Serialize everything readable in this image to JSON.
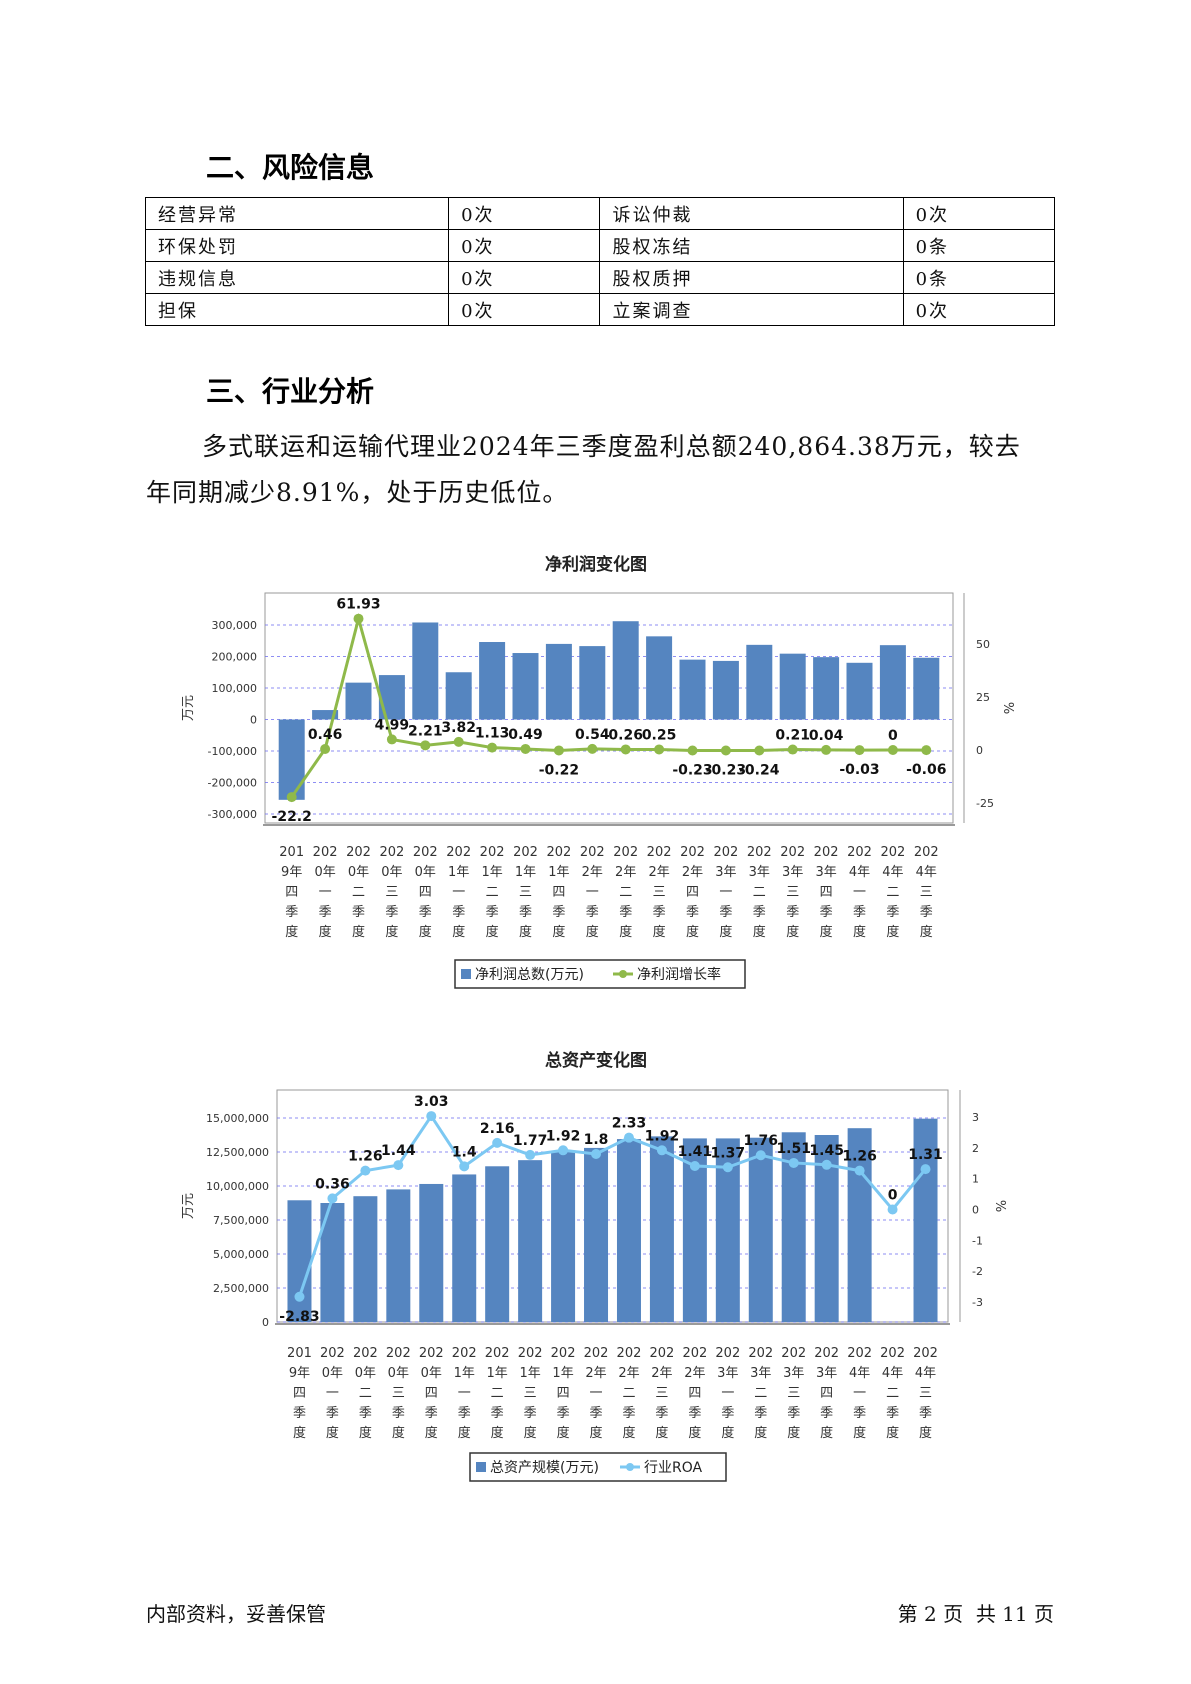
{
  "section2": {
    "title": "二、风险信息"
  },
  "risk_table": [
    [
      "经营异常",
      "0次",
      "诉讼仲裁",
      "0次"
    ],
    [
      "环保处罚",
      "0次",
      "股权冻结",
      "0条"
    ],
    [
      "违规信息",
      "0次",
      "股权质押",
      "0条"
    ],
    [
      "担保",
      "0次",
      "立案调查",
      "0次"
    ]
  ],
  "section3": {
    "title": "三、行业分析",
    "paragraph_line1": "多式联运和运输代理业2024年三季度盈利总额240,864.38万元，较去",
    "paragraph_line2": "年同期减少8.91%，处于历史低位。"
  },
  "chart_data": [
    {
      "type": "bar",
      "title": "净利润变化图",
      "ylabel": "万元",
      "y2label": "%",
      "ylim": [
        -300000,
        300000
      ],
      "y2lim": [
        -25,
        50
      ],
      "grid": true,
      "legend_placement": "bottom",
      "categories": [
        [
          "201",
          "9年",
          "四",
          "季",
          "度"
        ],
        [
          "202",
          "0年",
          "一",
          "季",
          "度"
        ],
        [
          "202",
          "0年",
          "二",
          "季",
          "度"
        ],
        [
          "202",
          "0年",
          "三",
          "季",
          "度"
        ],
        [
          "202",
          "0年",
          "四",
          "季",
          "度"
        ],
        [
          "202",
          "1年",
          "一",
          "季",
          "度"
        ],
        [
          "202",
          "1年",
          "二",
          "季",
          "度"
        ],
        [
          "202",
          "1年",
          "三",
          "季",
          "度"
        ],
        [
          "202",
          "1年",
          "四",
          "季",
          "度"
        ],
        [
          "202",
          "2年",
          "一",
          "季",
          "度"
        ],
        [
          "202",
          "2年",
          "二",
          "季",
          "度"
        ],
        [
          "202",
          "2年",
          "三",
          "季",
          "度"
        ],
        [
          "202",
          "2年",
          "四",
          "季",
          "度"
        ],
        [
          "202",
          "3年",
          "一",
          "季",
          "度"
        ],
        [
          "202",
          "3年",
          "二",
          "季",
          "度"
        ],
        [
          "202",
          "3年",
          "三",
          "季",
          "度"
        ],
        [
          "202",
          "3年",
          "四",
          "季",
          "度"
        ],
        [
          "202",
          "4年",
          "一",
          "季",
          "度"
        ],
        [
          "202",
          "4年",
          "二",
          "季",
          "度"
        ],
        [
          "202",
          "4年",
          "三",
          "季",
          "度"
        ]
      ],
      "ytick_labels": [
        "300,000",
        "200,000",
        "100,000",
        "0",
        "-100,000",
        "-200,000",
        "-300,000"
      ],
      "y2tick_labels": [
        "50",
        "25",
        "0",
        "-25"
      ],
      "series": [
        {
          "name": "净利润总数(万元)",
          "kind": "bar",
          "color": "#5585c0",
          "values": [
            -255000,
            30000,
            117000,
            141000,
            308000,
            150000,
            246000,
            211000,
            240000,
            233000,
            312000,
            264000,
            190000,
            186000,
            237000,
            209000,
            198000,
            180000,
            236000,
            196000
          ]
        },
        {
          "name": "净利润增长率",
          "kind": "line",
          "color": "#8fb94a",
          "values": [
            -22.2,
            0.46,
            61.93,
            4.99,
            2.21,
            3.82,
            1.13,
            0.49,
            -0.22,
            0.54,
            0.26,
            0.25,
            -0.23,
            -0.23,
            -0.24,
            0.21,
            0.04,
            -0.03,
            0,
            -0.06
          ],
          "labels": [
            "-22.2",
            "0.46",
            "61.93",
            "4.99",
            "2.21",
            "3.82",
            "1.13",
            "0.49",
            "-0.22",
            "0.54",
            "0.26",
            "0.25",
            "-0.23",
            "-0.23",
            "-0.24",
            "0.21",
            "0.04",
            "-0.03",
            "0",
            "-0.06"
          ]
        }
      ]
    },
    {
      "type": "bar",
      "title": "总资产变化图",
      "ylabel": "万元",
      "y2label": "%",
      "ylim": [
        0,
        15000000
      ],
      "y2lim": [
        -3,
        3
      ],
      "grid": true,
      "legend_placement": "bottom",
      "categories": [
        [
          "201",
          "9年",
          "四",
          "季",
          "度"
        ],
        [
          "202",
          "0年",
          "一",
          "季",
          "度"
        ],
        [
          "202",
          "0年",
          "二",
          "季",
          "度"
        ],
        [
          "202",
          "0年",
          "三",
          "季",
          "度"
        ],
        [
          "202",
          "0年",
          "四",
          "季",
          "度"
        ],
        [
          "202",
          "1年",
          "一",
          "季",
          "度"
        ],
        [
          "202",
          "1年",
          "二",
          "季",
          "度"
        ],
        [
          "202",
          "1年",
          "三",
          "季",
          "度"
        ],
        [
          "202",
          "1年",
          "四",
          "季",
          "度"
        ],
        [
          "202",
          "2年",
          "一",
          "季",
          "度"
        ],
        [
          "202",
          "2年",
          "二",
          "季",
          "度"
        ],
        [
          "202",
          "2年",
          "三",
          "季",
          "度"
        ],
        [
          "202",
          "2年",
          "四",
          "季",
          "度"
        ],
        [
          "202",
          "3年",
          "一",
          "季",
          "度"
        ],
        [
          "202",
          "3年",
          "二",
          "季",
          "度"
        ],
        [
          "202",
          "3年",
          "三",
          "季",
          "度"
        ],
        [
          "202",
          "3年",
          "四",
          "季",
          "度"
        ],
        [
          "202",
          "4年",
          "一",
          "季",
          "度"
        ],
        [
          "202",
          "4年",
          "二",
          "季",
          "度"
        ],
        [
          "202",
          "4年",
          "三",
          "季",
          "度"
        ]
      ],
      "ytick_labels": [
        "15,000,000",
        "12,500,000",
        "10,000,000",
        "7,500,000",
        "5,000,000",
        "2,500,000",
        "0"
      ],
      "y2tick_labels": [
        "3",
        "2",
        "1",
        "0",
        "-1",
        "-2",
        "-3"
      ],
      "series": [
        {
          "name": "总资产规模(万元)",
          "kind": "bar",
          "color": "#5585c0",
          "values": [
            8950000,
            8750000,
            9250000,
            9750000,
            10150000,
            10850000,
            11450000,
            11900000,
            12600000,
            12800000,
            13450000,
            13650000,
            13500000,
            13500000,
            13550000,
            13950000,
            13750000,
            14250000,
            0,
            14950000
          ]
        },
        {
          "name": "行业ROA",
          "kind": "line",
          "color": "#7cc8f2",
          "values": [
            -2.83,
            0.36,
            1.26,
            1.44,
            3.03,
            1.4,
            2.16,
            1.77,
            1.92,
            1.8,
            2.33,
            1.92,
            1.41,
            1.37,
            1.76,
            1.51,
            1.45,
            1.26,
            0,
            1.31
          ],
          "labels": [
            "-2.83",
            "0.36",
            "1.26",
            "1.44",
            "3.03",
            "1.4",
            "2.16",
            "1.77",
            "1.92",
            "1.8",
            "2.33",
            "1.92",
            "1.41",
            "1.37",
            "1.76",
            "1.51",
            "1.45",
            "1.26",
            "0",
            "1.31"
          ]
        }
      ]
    }
  ],
  "footer": {
    "left": "内部资料，妥善保管",
    "right": "第 2 页  共 11 页"
  }
}
